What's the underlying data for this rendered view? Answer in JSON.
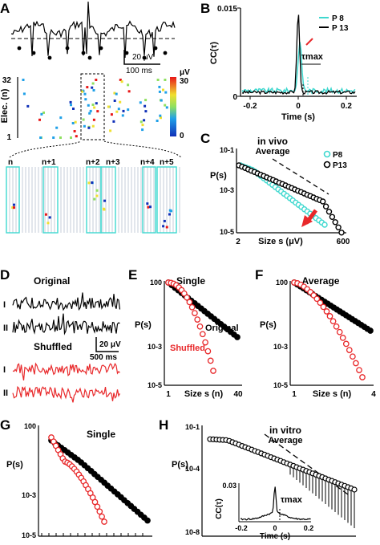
{
  "panels": {
    "A": {
      "letter": "A",
      "scale_uv": "20 μV",
      "scale_ms": "100 ms",
      "raster_ylabel": "Elec. (n)",
      "y_ticks": [
        "32",
        "1"
      ],
      "colorbar": {
        "unit": "μV",
        "max": "30",
        "min": "0"
      },
      "zoom_labels": [
        "n",
        "n+1",
        "n+2",
        "n+3",
        "n+4",
        "n+5"
      ]
    },
    "B": {
      "letter": "B",
      "ylabel": "CC(τ)",
      "xlabel": "Time (s)",
      "x_ticks": [
        "-0.2",
        "0",
        "0.2"
      ],
      "y_ticks": [
        "0.015",
        "0"
      ],
      "legend": [
        "P 8",
        "P 13"
      ],
      "tau_label": "τmax"
    },
    "C": {
      "letter": "C",
      "title": "in vivo",
      "subtitle": "Average",
      "ylabel": "P(s)",
      "xlabel": "Size s (μV)",
      "x_ticks": [
        "2",
        "600"
      ],
      "y_ticks": [
        "10-1",
        "10-3",
        "10-5"
      ],
      "legend": [
        "P8",
        "P13"
      ]
    },
    "D": {
      "letter": "D",
      "original": "Original",
      "shuffled": "Shuffled",
      "trace_labels": [
        "I",
        "II",
        "I",
        "II"
      ],
      "scale_uv": "20 μV",
      "scale_ms": "500 ms"
    },
    "E": {
      "letter": "E",
      "title": "Single",
      "ylabel": "P(s)",
      "xlabel": "Size s (n)",
      "x_ticks": [
        "1",
        "40"
      ],
      "y_ticks": [
        "100",
        "10-3",
        "10-5"
      ],
      "series_labels": [
        "Original",
        "Shuffled"
      ]
    },
    "F": {
      "letter": "F",
      "title": "Average",
      "ylabel": "P(s)",
      "xlabel": "Size s (n)",
      "x_ticks": [
        "1",
        "4"
      ],
      "y_ticks": [
        "100",
        "10-3",
        "10-5"
      ]
    },
    "G": {
      "letter": "G",
      "title": "Single",
      "ylabel": "P(s)",
      "y_ticks": [
        "100",
        "10-3",
        "10-5"
      ]
    },
    "H": {
      "letter": "H",
      "title": "in vitro",
      "subtitle": "Average",
      "ylabel": "P(s)",
      "y_ticks": [
        "10-1",
        "10-4",
        "10-8"
      ],
      "inset": {
        "ylabel": "CC(τ)",
        "xlabel": "Time (s)",
        "y_tick": "0.03",
        "x_ticks": [
          "-0.2",
          "0",
          "0.2"
        ],
        "tau_label": "τmax"
      }
    }
  },
  "colors": {
    "cyan": "#3fd8cf",
    "black": "#000000",
    "red": "#e8282a"
  }
}
